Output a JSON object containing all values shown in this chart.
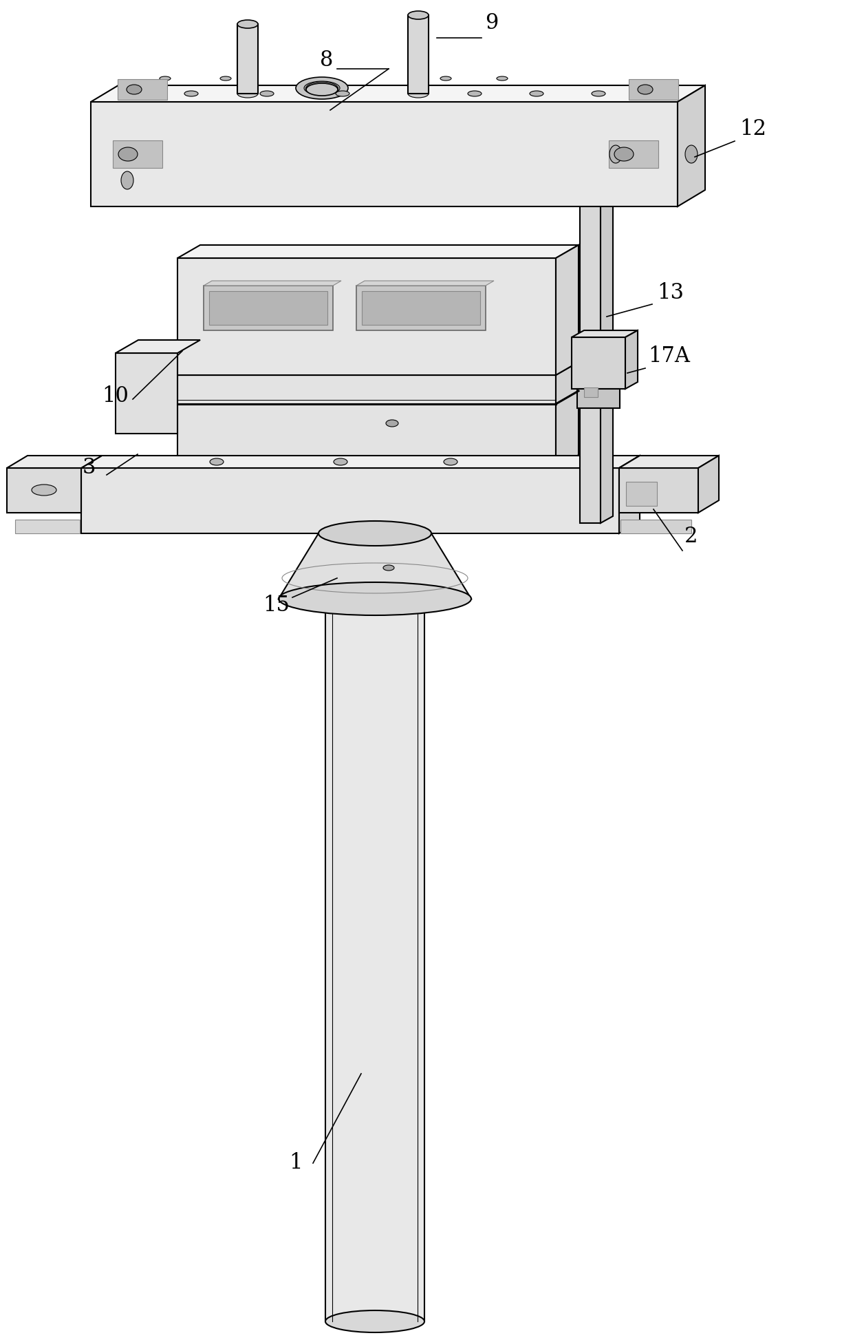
{
  "background_color": "#ffffff",
  "line_color": "#000000",
  "figsize": [
    12.4,
    19.47
  ],
  "dpi": 100
}
